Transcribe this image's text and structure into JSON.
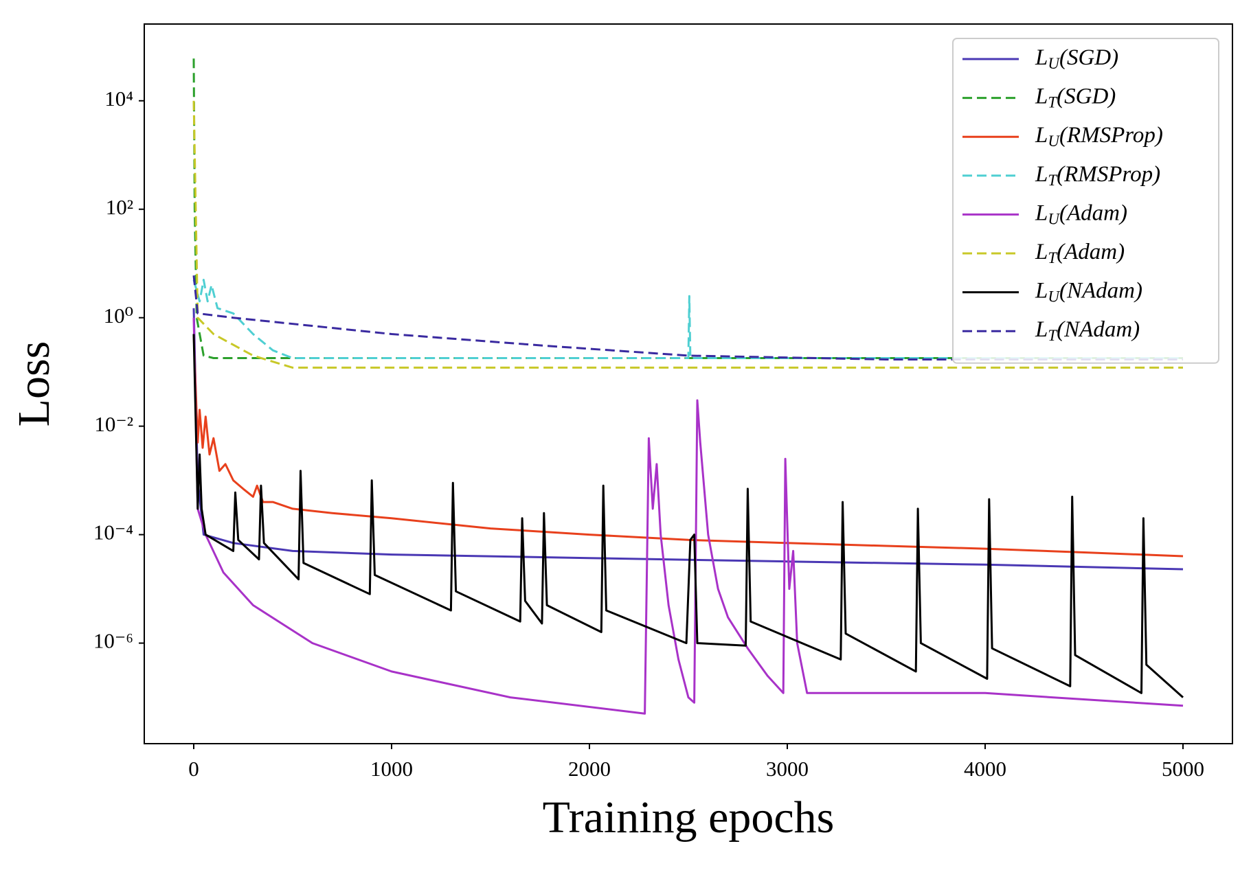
{
  "chart_data": {
    "type": "line",
    "xlabel": "Training epochs",
    "ylabel": "Loss",
    "xlim": [
      -250,
      5250
    ],
    "ylim": [
      1.4e-08,
      260000
    ],
    "yscale": "log",
    "xticks": [
      0,
      1000,
      2000,
      3000,
      4000,
      5000
    ],
    "yticks": [
      {
        "value": 1e-06,
        "label": "10⁻⁶"
      },
      {
        "value": 0.0001,
        "label": "10⁻⁴"
      },
      {
        "value": 0.01,
        "label": "10⁻²"
      },
      {
        "value": 1,
        "label": "10⁰"
      },
      {
        "value": 100,
        "label": "10²"
      },
      {
        "value": 10000,
        "label": "10⁴"
      }
    ],
    "grid": false,
    "legend": "upper right",
    "series": [
      {
        "name": "LU(SGD)",
        "color": "#4a38b4",
        "dash": "solid",
        "x": [
          0,
          20,
          50,
          200,
          500,
          1000,
          2000,
          3000,
          4000,
          5000
        ],
        "values": [
          1.5,
          0.001,
          0.0001,
          7e-05,
          5e-05,
          4.3e-05,
          3.7e-05,
          3.2e-05,
          2.8e-05,
          2.3e-05
        ]
      },
      {
        "name": "LT(SGD)",
        "color": "#2ca02c",
        "dash": "dashed",
        "x": [
          0,
          5,
          15,
          50,
          100,
          5000
        ],
        "values": [
          60000,
          100,
          1,
          0.2,
          0.18,
          0.18
        ]
      },
      {
        "name": "LU(RMSProp)",
        "color": "#e8401c",
        "dash": "solid",
        "x": [
          0,
          20,
          30,
          45,
          60,
          80,
          100,
          130,
          160,
          200,
          250,
          300,
          320,
          350,
          400,
          500,
          700,
          1000,
          1500,
          2000,
          2500,
          3000,
          3500,
          4000,
          4500,
          5000
        ],
        "values": [
          0.5,
          0.005,
          0.02,
          0.004,
          0.015,
          0.003,
          0.006,
          0.0015,
          0.002,
          0.001,
          0.0007,
          0.0005,
          0.0008,
          0.0004,
          0.0004,
          0.0003,
          0.00025,
          0.0002,
          0.00013,
          0.0001,
          8e-05,
          7e-05,
          6.2e-05,
          5.5e-05,
          4.7e-05,
          4e-05
        ]
      },
      {
        "name": "LT(RMSProp)",
        "color": "#4fcfd2",
        "dash": "dashed",
        "x": [
          0,
          30,
          50,
          70,
          90,
          120,
          200,
          300,
          400,
          500,
          2500,
          2505,
          2510,
          5000
        ],
        "values": [
          5,
          2,
          5,
          2,
          4,
          1.5,
          1.2,
          0.5,
          0.25,
          0.18,
          0.18,
          2.5,
          0.18,
          0.18
        ]
      },
      {
        "name": "LU(Adam)",
        "color": "#a832c8",
        "dash": "solid",
        "x": [
          0,
          20,
          60,
          150,
          300,
          600,
          1000,
          1600,
          2280,
          2300,
          2320,
          2340,
          2360,
          2400,
          2450,
          2500,
          2530,
          2545,
          2560,
          2600,
          2650,
          2700,
          2800,
          2900,
          2980,
          2990,
          3010,
          3030,
          3050,
          3100,
          4000,
          5000
        ],
        "values": [
          1,
          0.0003,
          0.0001,
          2e-05,
          5e-06,
          1e-06,
          3e-07,
          1e-07,
          5e-08,
          0.006,
          0.0003,
          0.002,
          0.0001,
          5e-06,
          5e-07,
          1e-07,
          8e-08,
          0.03,
          0.005,
          0.0001,
          1e-05,
          3e-06,
          8e-07,
          2.5e-07,
          1.2e-07,
          0.0025,
          1e-05,
          5e-05,
          1e-06,
          1.2e-07,
          1.2e-07,
          7e-08
        ]
      },
      {
        "name": "LT(Adam)",
        "color": "#c8c828",
        "dash": "dashed",
        "x": [
          0,
          20,
          100,
          300,
          500,
          5000
        ],
        "values": [
          10000,
          1,
          0.5,
          0.2,
          0.12,
          0.12
        ]
      },
      {
        "name": "LU(NAdam)",
        "color": "#000000",
        "dash": "solid",
        "x": [
          0,
          20,
          30,
          40,
          60,
          200,
          210,
          225,
          330,
          340,
          355,
          530,
          540,
          555,
          890,
          900,
          915,
          1300,
          1310,
          1325,
          1650,
          1660,
          1675,
          1760,
          1770,
          1785,
          2060,
          2070,
          2085,
          2490,
          2510,
          2530,
          2545,
          2790,
          2800,
          2815,
          3270,
          3280,
          3295,
          3650,
          3660,
          3675,
          4010,
          4020,
          4035,
          4430,
          4440,
          4455,
          4790,
          4800,
          4815,
          5000
        ],
        "values": [
          0.5,
          0.0003,
          0.003,
          0.0003,
          0.0001,
          5e-05,
          0.0006,
          8e-05,
          3.5e-05,
          0.0008,
          7e-05,
          1.5e-05,
          0.0015,
          3e-05,
          8e-06,
          0.001,
          1.8e-05,
          4e-06,
          0.0009,
          9e-06,
          2.5e-06,
          0.0002,
          6e-06,
          2.3e-06,
          0.00025,
          5e-06,
          1.6e-06,
          0.0008,
          4e-06,
          1e-06,
          8e-05,
          0.0001,
          1e-06,
          9e-07,
          0.0007,
          2.5e-06,
          5e-07,
          0.0004,
          1.5e-06,
          3e-07,
          0.0003,
          1e-06,
          2.2e-07,
          0.00045,
          8e-07,
          1.6e-07,
          0.0005,
          6e-07,
          1.2e-07,
          0.0002,
          4e-07,
          1e-07
        ]
      },
      {
        "name": "LT(NAdam)",
        "color": "#3a2aa0",
        "dash": "dashed",
        "x": [
          0,
          20,
          200,
          1000,
          1800,
          2500,
          3500,
          5000
        ],
        "values": [
          6,
          1.2,
          1,
          0.5,
          0.3,
          0.2,
          0.17,
          0.17
        ]
      }
    ]
  }
}
